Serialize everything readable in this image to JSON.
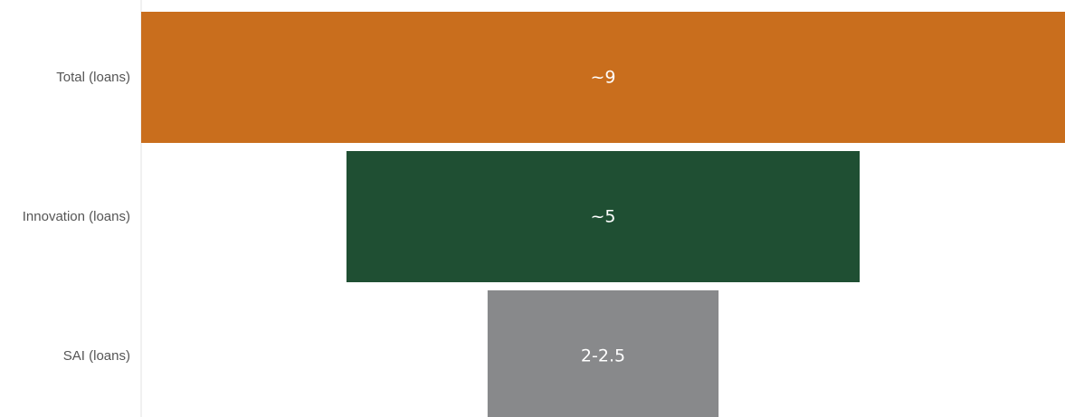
{
  "chart_data": {
    "type": "funnel",
    "title": "",
    "xlabel": "",
    "ylabel": "",
    "categories": [
      "Total (loans)",
      "Innovation (loans)",
      "SAI (loans)"
    ],
    "values": [
      9,
      5,
      2.25
    ],
    "value_labels": [
      "~9",
      "~5",
      "2-2.5"
    ],
    "colors": [
      "#c96e1d",
      "#1f4f33",
      "#88898b"
    ],
    "label_color": "#ffffff",
    "grid": false,
    "legend": "none"
  }
}
